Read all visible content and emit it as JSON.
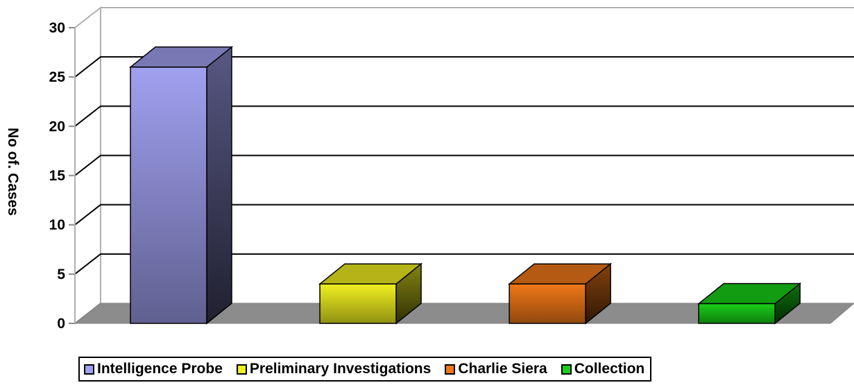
{
  "chart_data": {
    "type": "bar",
    "title": "",
    "xlabel": "",
    "ylabel": "No of. Cases",
    "ylim": [
      0,
      30
    ],
    "yticks": [
      0,
      5,
      10,
      15,
      20,
      25,
      30
    ],
    "grid": true,
    "legend_position": "bottom",
    "series": [
      {
        "name": "Intelligence Probe",
        "value": 26,
        "color": "#a0a0f0"
      },
      {
        "name": "Preliminary Investigations",
        "value": 4,
        "color": "#f0f020"
      },
      {
        "name": "Charlie Siera",
        "value": 4,
        "color": "#f07818"
      },
      {
        "name": "Collection",
        "value": 2,
        "color": "#18d018"
      }
    ]
  }
}
